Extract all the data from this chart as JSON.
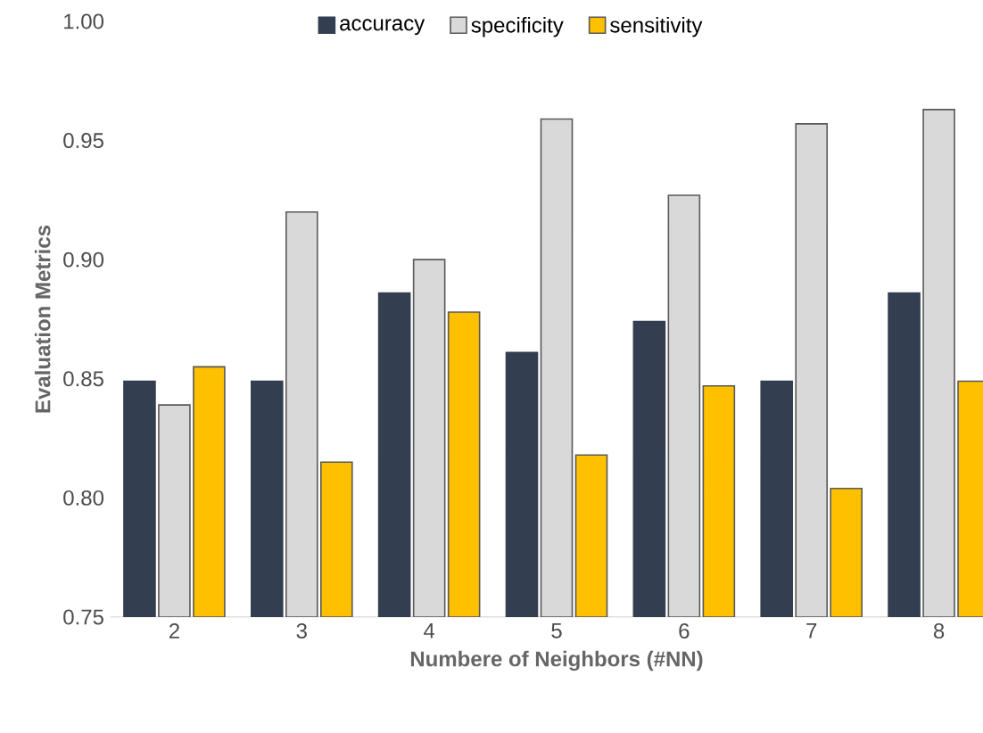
{
  "chart_data": {
    "type": "bar",
    "xlabel": "Numbere of Neighbors (#NN)",
    "ylabel": "Evaluation Metrics",
    "categories": [
      "2",
      "3",
      "4",
      "5",
      "6",
      "7",
      "8"
    ],
    "series": [
      {
        "name": "accuracy",
        "color": "#333f50",
        "values": [
          0.849,
          0.849,
          0.886,
          0.861,
          0.874,
          0.849,
          0.886
        ]
      },
      {
        "name": "specificity",
        "color": "#d9d9d9",
        "values": [
          0.839,
          0.92,
          0.9,
          0.959,
          0.927,
          0.957,
          0.963
        ]
      },
      {
        "name": "sensitivity",
        "color": "#ffc000",
        "values": [
          0.855,
          0.815,
          0.878,
          0.818,
          0.847,
          0.804,
          0.849
        ]
      }
    ],
    "ylim": [
      0.75,
      1.0
    ],
    "yticks": [
      0.75,
      {
        "value": 0.8,
        "label": "0.80"
      },
      0.85,
      {
        "value": 0.9,
        "label": "0.90"
      },
      0.95,
      {
        "value": 1.0,
        "label": "1.00"
      }
    ],
    "legend": "top"
  }
}
